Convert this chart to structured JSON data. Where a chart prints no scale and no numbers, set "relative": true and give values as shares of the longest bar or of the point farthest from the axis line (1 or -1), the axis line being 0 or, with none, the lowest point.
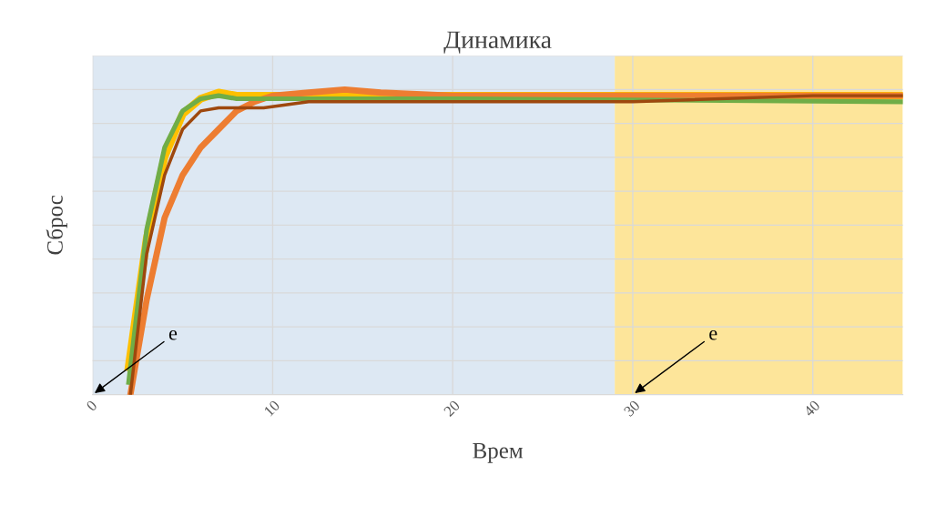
{
  "chart_data": {
    "type": "line",
    "title": "Динамика",
    "xlabel": "Врем",
    "ylabel": "Сброс",
    "relative": true,
    "xlim": [
      0,
      45
    ],
    "xticks": [
      0,
      10,
      20,
      30,
      40
    ],
    "tick_labels": "x",
    "grid": true,
    "marker": "none",
    "line_style": "solid",
    "series": [
      {
        "color": "#ffc000",
        "x": [
          2,
          3,
          4,
          5,
          6,
          7,
          8,
          10,
          20,
          45
        ],
        "values": [
          0.09,
          0.51,
          0.78,
          0.92,
          0.97,
          0.99,
          0.98,
          0.98,
          0.98,
          0.98
        ]
      },
      {
        "color": "#ed7d31",
        "x": [
          2.1,
          3,
          4,
          5,
          6,
          7,
          8,
          9,
          10,
          12,
          14,
          16,
          20,
          30,
          45
        ],
        "values": [
          0,
          0.31,
          0.58,
          0.72,
          0.81,
          0.87,
          0.93,
          0.96,
          0.98,
          0.99,
          1.0,
          0.99,
          0.98,
          0.98,
          0.98
        ]
      },
      {
        "color": "#70ad47",
        "x": [
          2,
          3,
          4,
          5,
          6,
          7,
          8,
          10,
          20,
          45
        ],
        "values": [
          0.04,
          0.54,
          0.81,
          0.93,
          0.97,
          0.98,
          0.97,
          0.97,
          0.97,
          0.96
        ]
      },
      {
        "color": "#9e480e",
        "x": [
          2.1,
          3,
          4,
          5,
          6,
          7,
          8,
          9.5,
          12,
          20,
          30,
          40,
          45
        ],
        "values": [
          0,
          0.46,
          0.72,
          0.87,
          0.93,
          0.94,
          0.94,
          0.94,
          0.96,
          0.96,
          0.96,
          0.98,
          0.98
        ]
      }
    ],
    "bands": [
      {
        "axis": "x",
        "from": 0,
        "to": 29,
        "color": "#dde8f3"
      },
      {
        "axis": "x",
        "from": 29,
        "to": 45,
        "color": "#fde59a"
      }
    ],
    "annotations": [
      {
        "text": "e",
        "x": 0,
        "y": 0
      },
      {
        "text": "e",
        "x": 30,
        "y": 0
      }
    ]
  }
}
